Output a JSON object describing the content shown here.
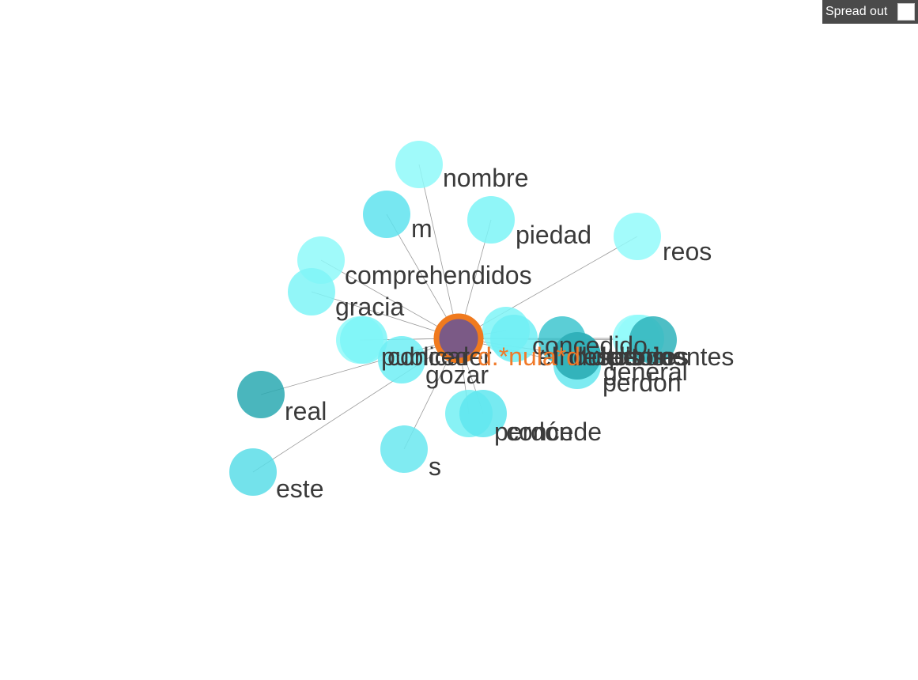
{
  "controls": {
    "spread_label": "Spread out",
    "spread_checked": false
  },
  "graph": {
    "center": {
      "label": "d.*nula*d",
      "color": "#7b5a86",
      "ring": "#f07a1e"
    },
    "nodes": [
      {
        "label": "nombre",
        "color": "#8ff9f9"
      },
      {
        "label": "m",
        "color": "#5fe3ee"
      },
      {
        "label": "piedad",
        "color": "#7df4f7"
      },
      {
        "label": "reos",
        "color": "#93fafa"
      },
      {
        "label": "comprehendidos",
        "color": "#8ff9f9"
      },
      {
        "label": "gracia",
        "color": "#7ff5f7"
      },
      {
        "label": "publicar",
        "color": "#8ff9f9"
      },
      {
        "label": "conceder",
        "color": "#7df4f7"
      },
      {
        "label": "gozar",
        "color": "#6eeff5"
      },
      {
        "label": "real",
        "color": "#2aa9b1"
      },
      {
        "label": "este",
        "color": "#5bdde7"
      },
      {
        "label": "s",
        "color": "#6ae8f0"
      },
      {
        "label": "perdón",
        "color": "#73f0f3"
      },
      {
        "label": "concede",
        "color": "#5fe6ee"
      },
      {
        "label": "concedido",
        "color": "#7ff5f7"
      },
      {
        "label": "el",
        "color": "#6eeff5"
      },
      {
        "label": "delitos",
        "color": "#3ec6cf"
      },
      {
        "label": "general",
        "color": "#58e0e9"
      },
      {
        "label": "perdon",
        "color": "#66e8ef"
      },
      {
        "label": "indultos",
        "color": "#2aa9b1"
      },
      {
        "label": "desertores",
        "color": "#8ff9f9"
      },
      {
        "label": "pertinentes",
        "color": "#93fafa"
      },
      {
        "label": "todos",
        "color": "#2fb3bb"
      }
    ]
  }
}
